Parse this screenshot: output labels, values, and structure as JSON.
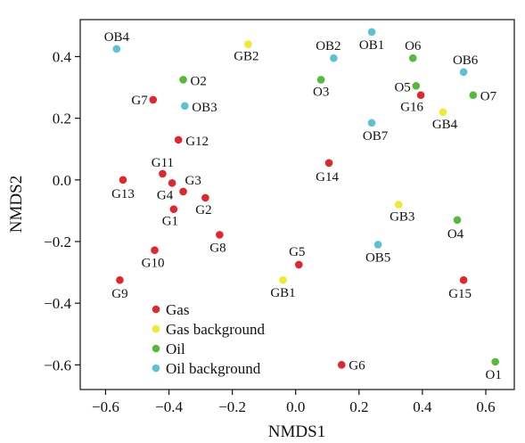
{
  "chart_data": {
    "type": "scatter",
    "xlabel": "NMDS1",
    "ylabel": "NMDS2",
    "xlim": [
      -0.68,
      0.69
    ],
    "ylim": [
      -0.68,
      0.52
    ],
    "x_ticks": [
      -0.6,
      -0.4,
      -0.2,
      0.0,
      0.2,
      0.4,
      0.6
    ],
    "x_tick_labels": [
      "−0.6",
      "−0.4",
      "−0.2",
      "0.0",
      "0.2",
      "0.4",
      "0.6"
    ],
    "y_ticks": [
      -0.6,
      -0.4,
      -0.2,
      0.0,
      0.2,
      0.4
    ],
    "y_tick_labels": [
      "−0.6",
      "−0.4",
      "−0.2",
      "0.0",
      "0.2",
      "0.4"
    ],
    "grid": false,
    "legend_position": "bottom-left",
    "colors": {
      "Gas": "#e3262b",
      "Gas background": "#f0ea2e",
      "Oil": "#55b93a",
      "Oil background": "#5cc0d8"
    },
    "series": [
      {
        "name": "Gas",
        "points": [
          {
            "label": "G1",
            "x": -0.385,
            "y": -0.095
          },
          {
            "label": "G2",
            "x": -0.285,
            "y": -0.058
          },
          {
            "label": "G3",
            "x": -0.355,
            "y": -0.038
          },
          {
            "label": "G4",
            "x": -0.39,
            "y": -0.01
          },
          {
            "label": "G5",
            "x": 0.01,
            "y": -0.275
          },
          {
            "label": "G6",
            "x": 0.145,
            "y": -0.6
          },
          {
            "label": "G7",
            "x": -0.45,
            "y": 0.26
          },
          {
            "label": "G8",
            "x": -0.24,
            "y": -0.178
          },
          {
            "label": "G9",
            "x": -0.555,
            "y": -0.325
          },
          {
            "label": "G10",
            "x": -0.445,
            "y": -0.228
          },
          {
            "label": "G11",
            "x": -0.42,
            "y": 0.02
          },
          {
            "label": "G12",
            "x": -0.37,
            "y": 0.13
          },
          {
            "label": "G13",
            "x": -0.545,
            "y": 0.0
          },
          {
            "label": "G14",
            "x": 0.105,
            "y": 0.055
          },
          {
            "label": "G15",
            "x": 0.53,
            "y": -0.325
          },
          {
            "label": "G16",
            "x": 0.395,
            "y": 0.275
          }
        ]
      },
      {
        "name": "Gas background",
        "points": [
          {
            "label": "GB1",
            "x": -0.04,
            "y": -0.325
          },
          {
            "label": "GB2",
            "x": -0.15,
            "y": 0.44
          },
          {
            "label": "GB3",
            "x": 0.325,
            "y": -0.08
          },
          {
            "label": "GB4",
            "x": 0.465,
            "y": 0.22
          }
        ]
      },
      {
        "name": "Oil",
        "points": [
          {
            "label": "O1",
            "x": 0.63,
            "y": -0.59
          },
          {
            "label": "O2",
            "x": -0.355,
            "y": 0.325
          },
          {
            "label": "O3",
            "x": 0.08,
            "y": 0.325
          },
          {
            "label": "O4",
            "x": 0.51,
            "y": -0.13
          },
          {
            "label": "O5",
            "x": 0.38,
            "y": 0.305
          },
          {
            "label": "O6",
            "x": 0.37,
            "y": 0.395
          },
          {
            "label": "O7",
            "x": 0.56,
            "y": 0.275
          }
        ]
      },
      {
        "name": "Oil background",
        "points": [
          {
            "label": "OB1",
            "x": 0.24,
            "y": 0.48
          },
          {
            "label": "OB2",
            "x": 0.12,
            "y": 0.395
          },
          {
            "label": "OB3",
            "x": -0.35,
            "y": 0.24
          },
          {
            "label": "OB4",
            "x": -0.565,
            "y": 0.425
          },
          {
            "label": "OB5",
            "x": 0.26,
            "y": -0.21
          },
          {
            "label": "OB6",
            "x": 0.53,
            "y": 0.35
          },
          {
            "label": "OB7",
            "x": 0.24,
            "y": 0.185
          }
        ]
      }
    ]
  }
}
